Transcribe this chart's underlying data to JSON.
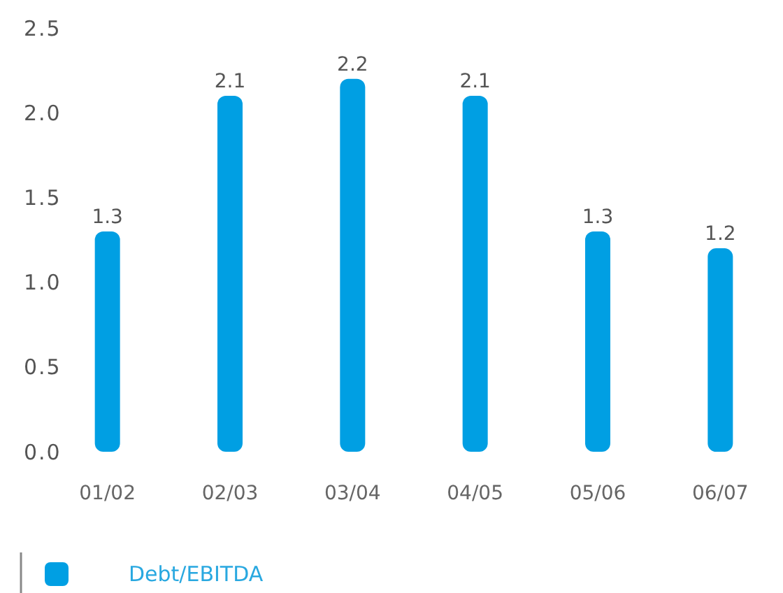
{
  "chart_data": {
    "type": "bar",
    "categories": [
      "01/02",
      "02/03",
      "03/04",
      "04/05",
      "05/06",
      "06/07"
    ],
    "series": [
      {
        "name": "Debt/EBITDA",
        "color": "#009fe3",
        "values": [
          1.3,
          2.1,
          2.2,
          2.1,
          1.3,
          1.2
        ]
      }
    ],
    "ylim": [
      0,
      2.5
    ],
    "yticks": [
      {
        "value": 0,
        "label": "0.0"
      },
      {
        "value": 0.5,
        "label": "0.5"
      },
      {
        "value": 1,
        "label": "1.0"
      },
      {
        "value": 1.5,
        "label": "1.5"
      },
      {
        "value": 2,
        "label": "2.0"
      },
      {
        "value": 2.5,
        "label": "2.5"
      }
    ],
    "data_labels": true,
    "grid": false,
    "legend": "bottom left"
  }
}
